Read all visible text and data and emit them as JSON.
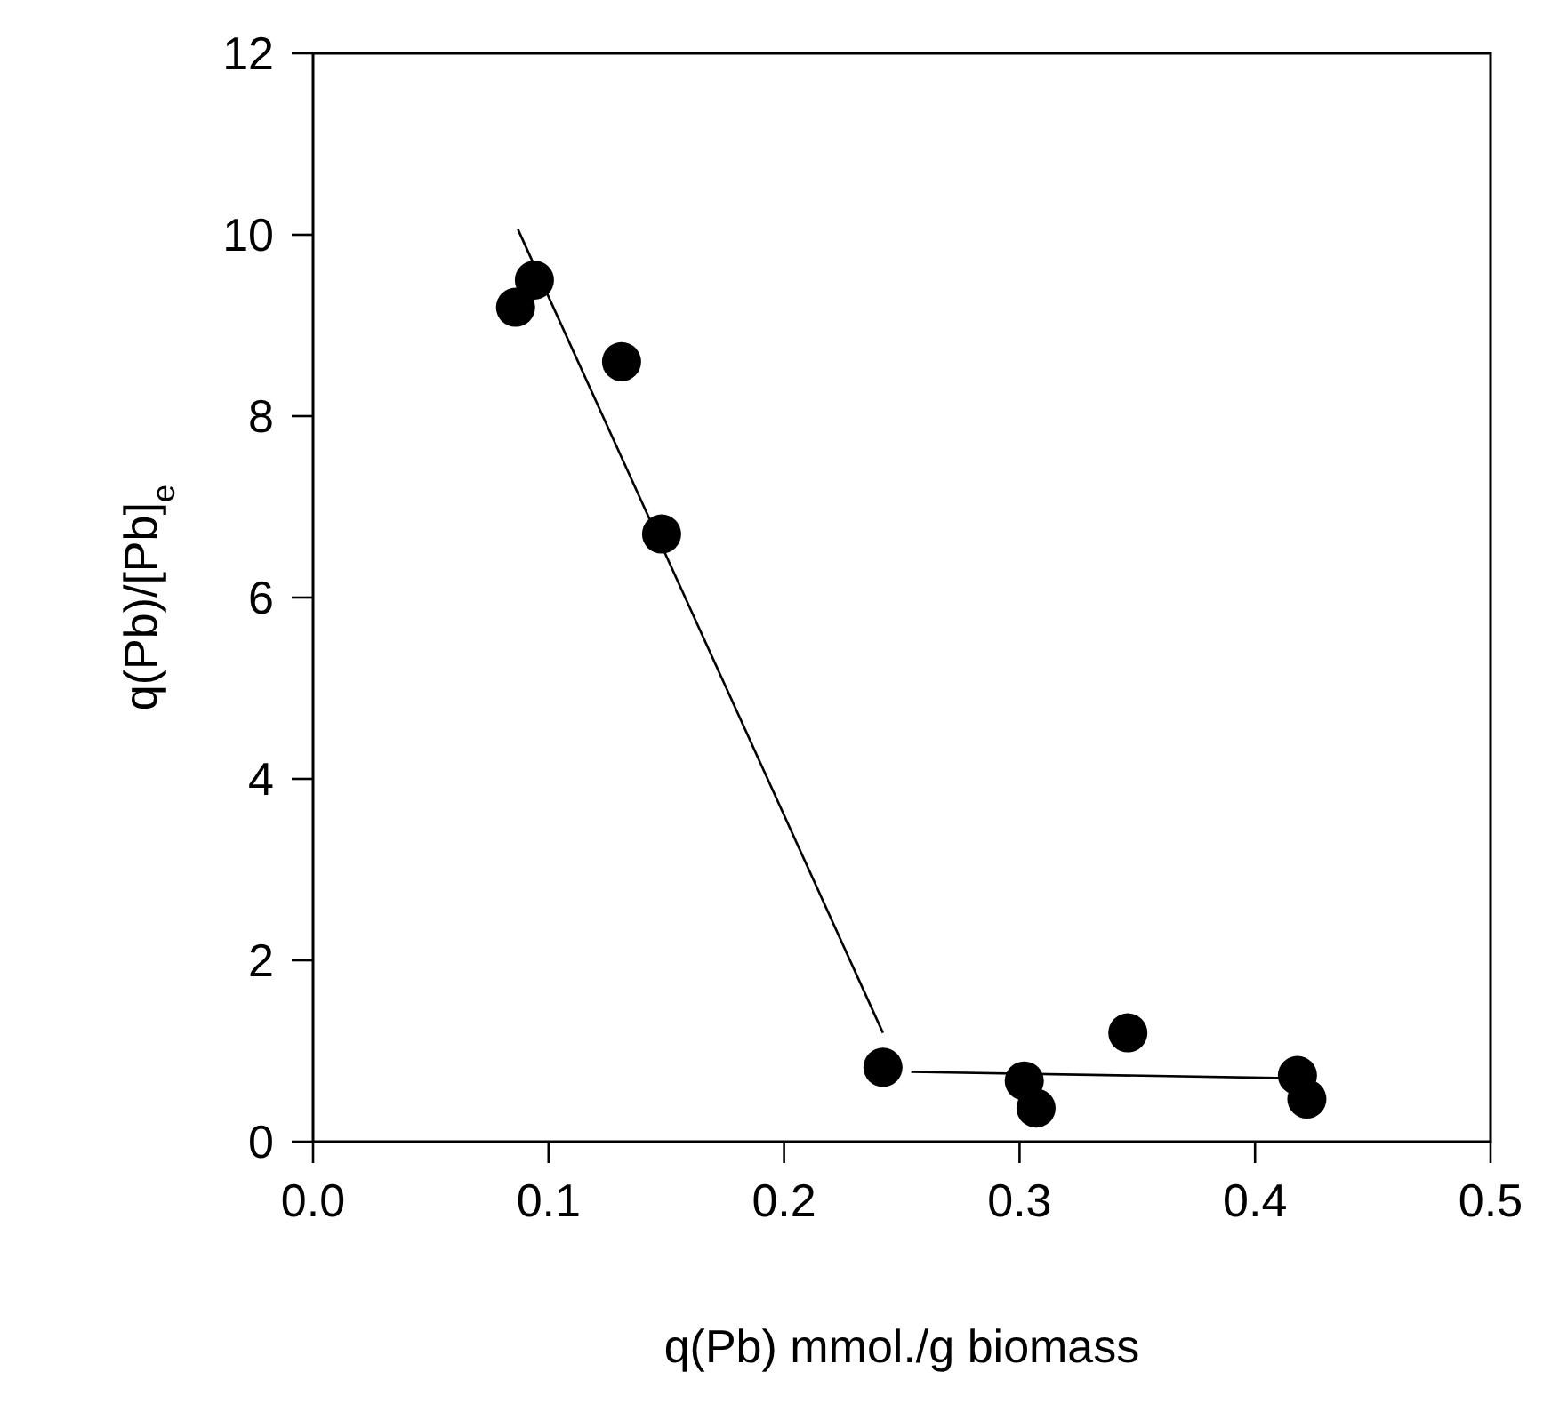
{
  "chart_data": {
    "type": "scatter",
    "xlabel": "q(Pb) mmol./g biomass",
    "ylabel": "q(Pb)/[Pb]$_{e}$",
    "xlim": [
      0,
      0.5
    ],
    "ylim": [
      0,
      12
    ],
    "xticks": [
      {
        "value": 0,
        "label": "0.0"
      },
      {
        "value": 0.1,
        "label": "0.1"
      },
      {
        "value": 0.2,
        "label": "0.2"
      },
      {
        "value": 0.3,
        "label": "0.3"
      },
      {
        "value": 0.4,
        "label": "0.4"
      },
      {
        "value": 0.5,
        "label": "0.5"
      }
    ],
    "yticks": [
      0,
      2,
      4,
      6,
      8,
      10,
      12
    ],
    "marker": "circle",
    "grid": false,
    "series": [
      {
        "color": "#000000",
        "x": [
          0.086,
          0.094,
          0.131,
          0.148,
          0.242,
          0.302,
          0.307,
          0.346,
          0.418,
          0.422
        ],
        "values": [
          9.2,
          9.5,
          8.6,
          6.7,
          0.82,
          0.67,
          0.37,
          1.2,
          0.73,
          0.47
        ]
      },
      {
        "type": "line",
        "color": "#000000",
        "marker": "none",
        "x": [
          0.087,
          0.242
        ],
        "values": [
          10.06,
          1.2
        ]
      },
      {
        "type": "line",
        "color": "#000000",
        "marker": "none",
        "x": [
          0.254,
          0.415
        ],
        "values": [
          0.77,
          0.7
        ]
      }
    ]
  }
}
